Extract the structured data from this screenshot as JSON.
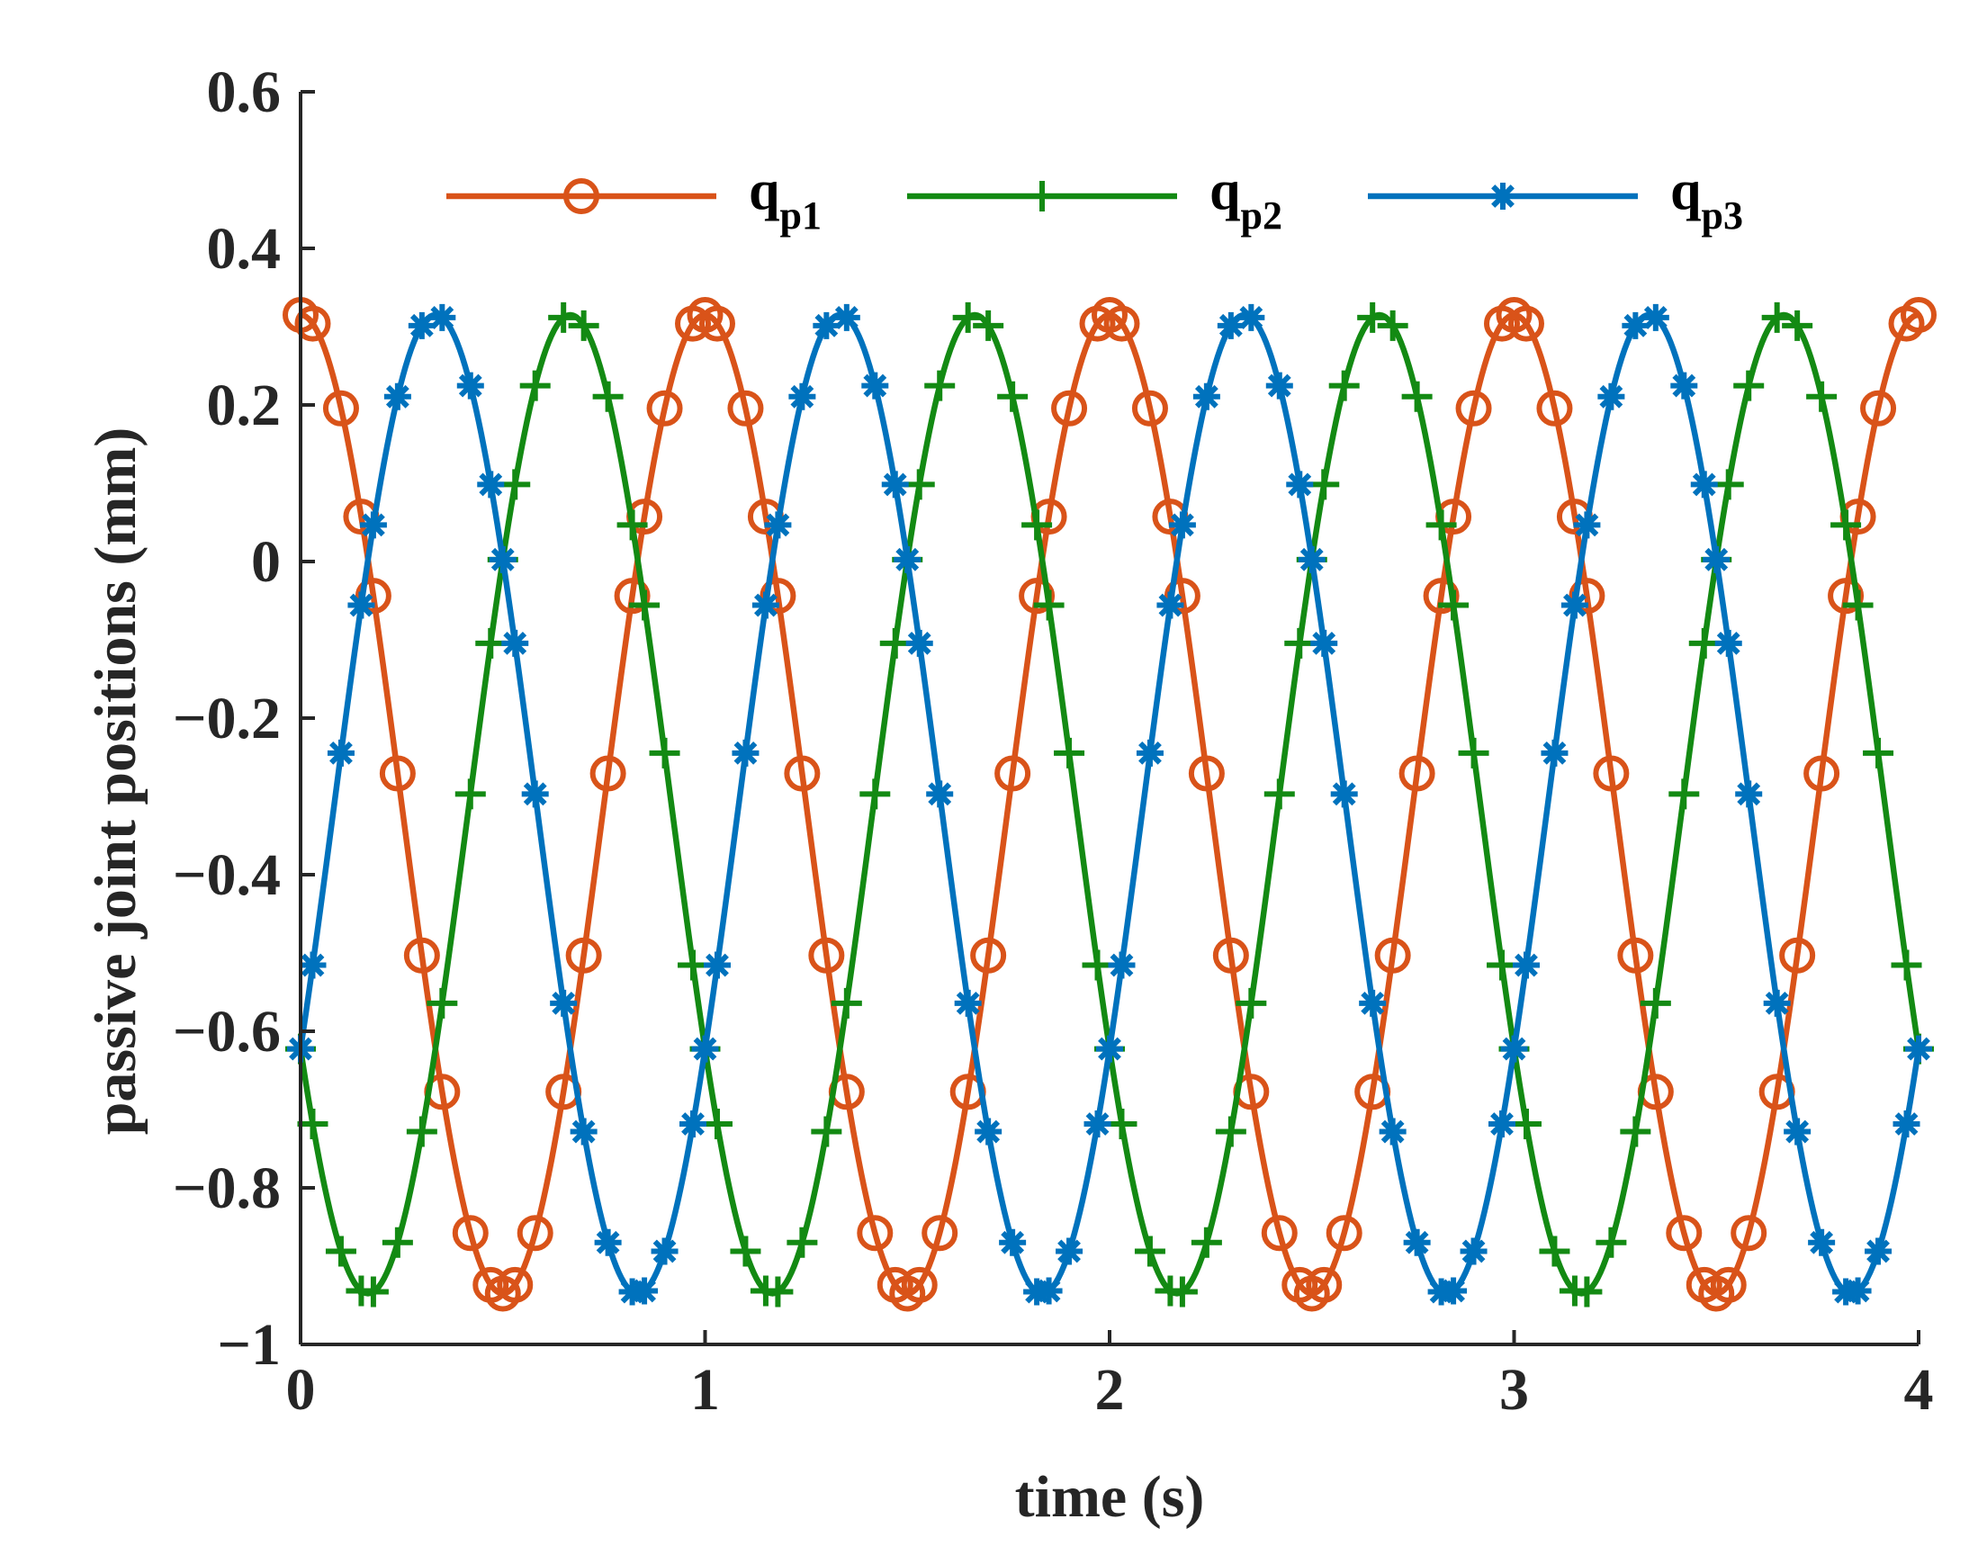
{
  "chart_data": {
    "type": "line",
    "title": "",
    "xlabel": "time (s)",
    "ylabel": "passive joint positions (mm)",
    "xlim": [
      0,
      4
    ],
    "ylim": [
      -1,
      0.6
    ],
    "xticks": [
      "0",
      "1",
      "2",
      "3",
      "4"
    ],
    "yticks": [
      "−1",
      "−0.8",
      "−0.6",
      "−0.4",
      "−0.2",
      "0",
      "0.2",
      "0.4",
      "0.6"
    ],
    "grid": false,
    "legend_position": "top",
    "legend_orientation": "horizontal",
    "period_s": 1,
    "series": [
      {
        "name_main": "q",
        "name_sub": "p1",
        "color": "#D95319",
        "marker": "circle",
        "amplitude": 0.625,
        "offset": -0.31,
        "phase_deg": 0,
        "peak_value": 0.315,
        "trough_value": -0.935
      },
      {
        "name_main": "q",
        "name_sub": "p2",
        "color": "#138A13",
        "marker": "plus",
        "amplitude": 0.625,
        "offset": -0.31,
        "phase_deg": 120,
        "peak_value": 0.315,
        "trough_value": -0.935
      },
      {
        "name_main": "q",
        "name_sub": "p3",
        "color": "#0072BD",
        "marker": "asterisk",
        "amplitude": 0.625,
        "offset": -0.31,
        "phase_deg": -120,
        "peak_value": 0.315,
        "trough_value": -0.935
      }
    ],
    "sample_x": [
      0,
      0.03,
      0.1,
      0.15,
      0.18,
      0.24,
      0.3,
      0.35,
      0.42,
      0.47,
      0.5,
      0.53,
      0.58,
      0.65,
      0.7,
      0.76,
      0.82,
      0.85,
      0.9,
      0.97,
      1.0,
      1.03,
      1.1,
      1.15,
      1.18,
      1.24,
      1.3,
      1.35,
      1.42,
      1.47,
      1.5,
      1.53,
      1.58,
      1.65,
      1.7,
      1.76,
      1.82,
      1.85,
      1.9,
      1.97,
      2.0,
      2.03,
      2.1,
      2.15,
      2.18,
      2.24,
      2.3,
      2.35,
      2.42,
      2.47,
      2.5,
      2.53,
      2.58,
      2.65,
      2.7,
      2.76,
      2.82,
      2.85,
      2.9,
      2.97,
      3.0,
      3.03,
      3.1,
      3.15,
      3.18,
      3.24,
      3.3,
      3.35,
      3.42,
      3.47,
      3.5,
      3.53,
      3.58,
      3.65,
      3.7,
      3.76,
      3.82,
      3.85,
      3.9,
      3.97,
      4.0
    ]
  }
}
